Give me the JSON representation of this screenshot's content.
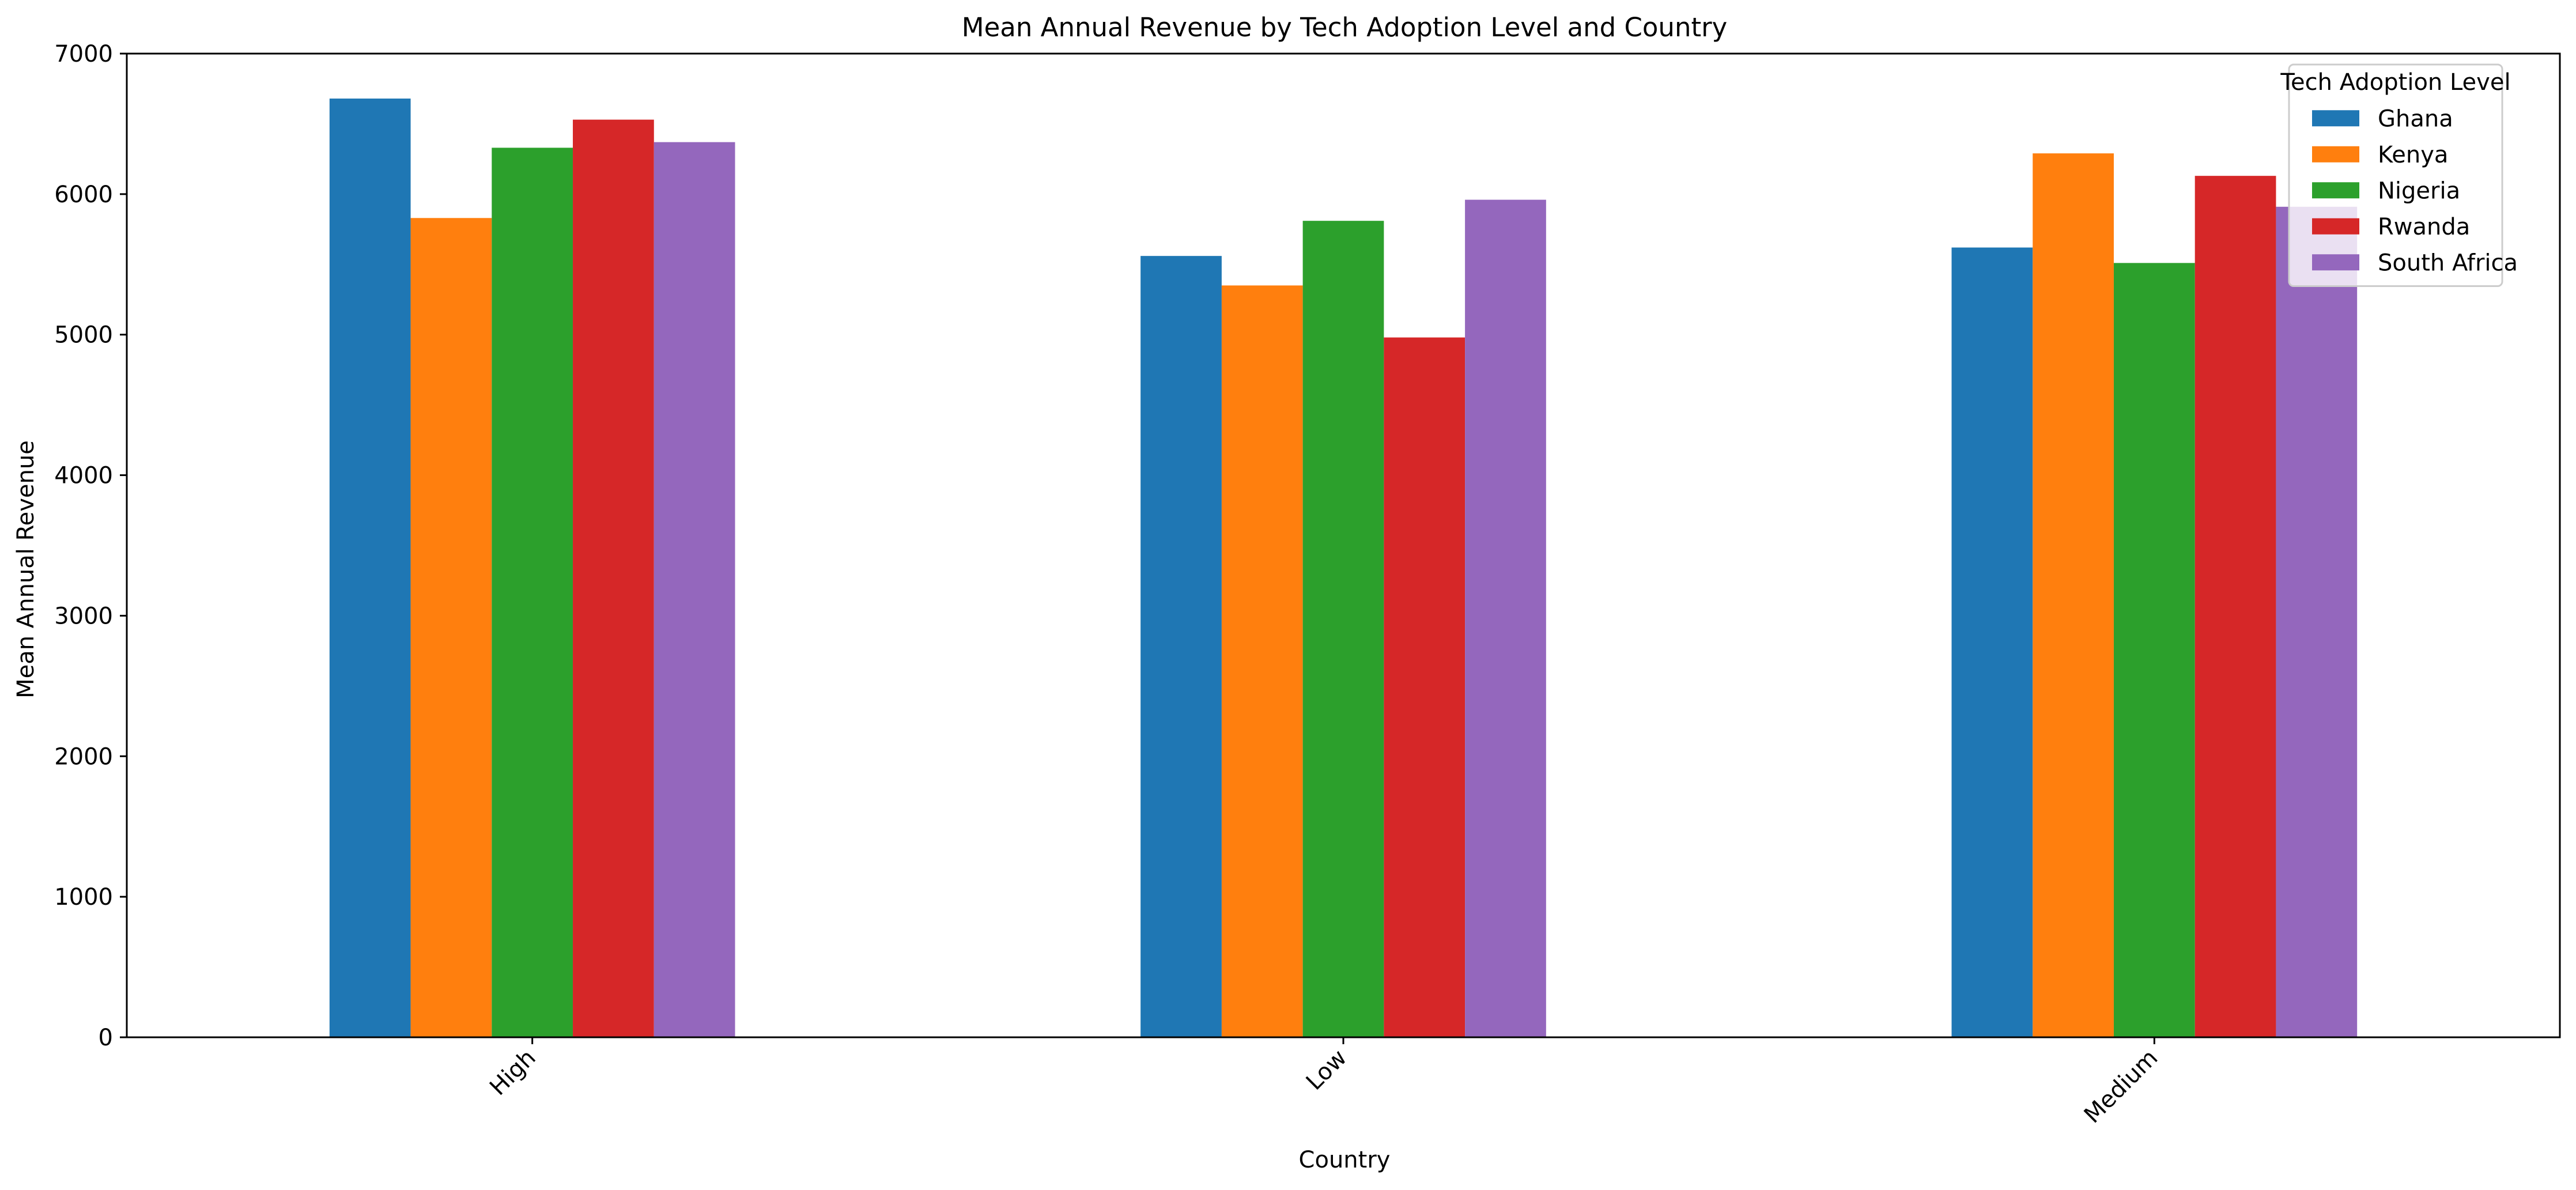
{
  "chart_data": {
    "type": "bar",
    "title": "Mean Annual Revenue by Tech Adoption Level and Country",
    "xlabel": "Country",
    "ylabel": "Mean Annual Revenue",
    "categories": [
      "High",
      "Low",
      "Medium"
    ],
    "ylim": [
      0,
      7000
    ],
    "yticks": [
      0,
      1000,
      2000,
      3000,
      4000,
      5000,
      6000,
      7000
    ],
    "grid": false,
    "legend": {
      "title": "Tech Adoption Level",
      "position": "top-right"
    },
    "series": [
      {
        "name": "Ghana",
        "color": "#1f77b4",
        "values": [
          6680,
          5560,
          5620
        ]
      },
      {
        "name": "Kenya",
        "color": "#ff7f0e",
        "values": [
          5830,
          5350,
          6290
        ]
      },
      {
        "name": "Nigeria",
        "color": "#2ca02c",
        "values": [
          6330,
          5810,
          5510
        ]
      },
      {
        "name": "Rwanda",
        "color": "#d62728",
        "values": [
          6530,
          4980,
          6130
        ]
      },
      {
        "name": "South Africa",
        "color": "#9467bd",
        "values": [
          6370,
          5960,
          5910
        ]
      }
    ]
  }
}
